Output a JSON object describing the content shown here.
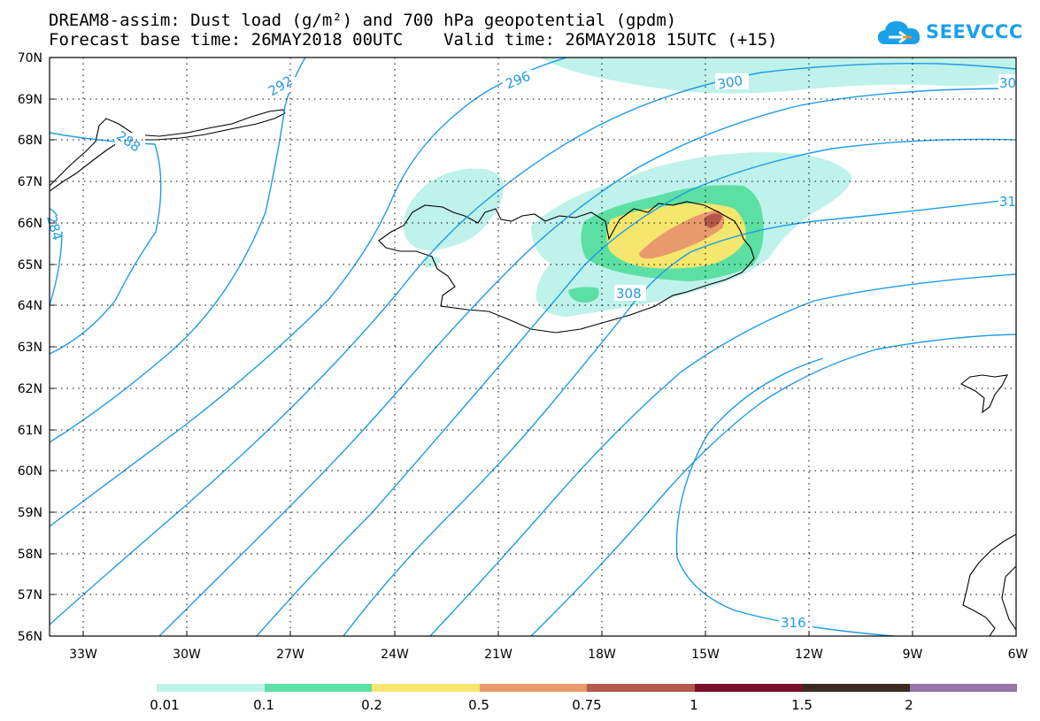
{
  "header": {
    "title_line1": "DREAM8-assim: Dust load (g/m²) and 700 hPa geopotential (gpdm)",
    "title_line2": "Forecast base time: 26MAY2018 00UTC    Valid time: 26MAY2018 15UTC (+15)"
  },
  "logo": {
    "text": "SEEVCCC",
    "icon": "cloud-icon",
    "color": "#1aa0e8"
  },
  "axes": {
    "lat_labels": [
      "70N",
      "69N",
      "68N",
      "67N",
      "66N",
      "65N",
      "64N",
      "63N",
      "62N",
      "61N",
      "60N",
      "59N",
      "58N",
      "57N",
      "56N"
    ],
    "lon_labels": [
      "33W",
      "30W",
      "27W",
      "24W",
      "21W",
      "18W",
      "15W",
      "12W",
      "9W",
      "6W"
    ]
  },
  "contours": {
    "color": "#1e9be8",
    "labels": [
      "292",
      "296",
      "300",
      "288",
      "284",
      "308",
      "316",
      "30",
      "31"
    ]
  },
  "legend": {
    "colors": [
      "#bff2ea",
      "#5cdfa3",
      "#f5e66e",
      "#e89a6c",
      "#b3584a",
      "#7a0f2b",
      "#3d2a1f",
      "#9673a8"
    ],
    "ticks": [
      "0.01",
      "0.1",
      "0.2",
      "0.5",
      "0.75",
      "1",
      "1.5",
      "2"
    ]
  }
}
